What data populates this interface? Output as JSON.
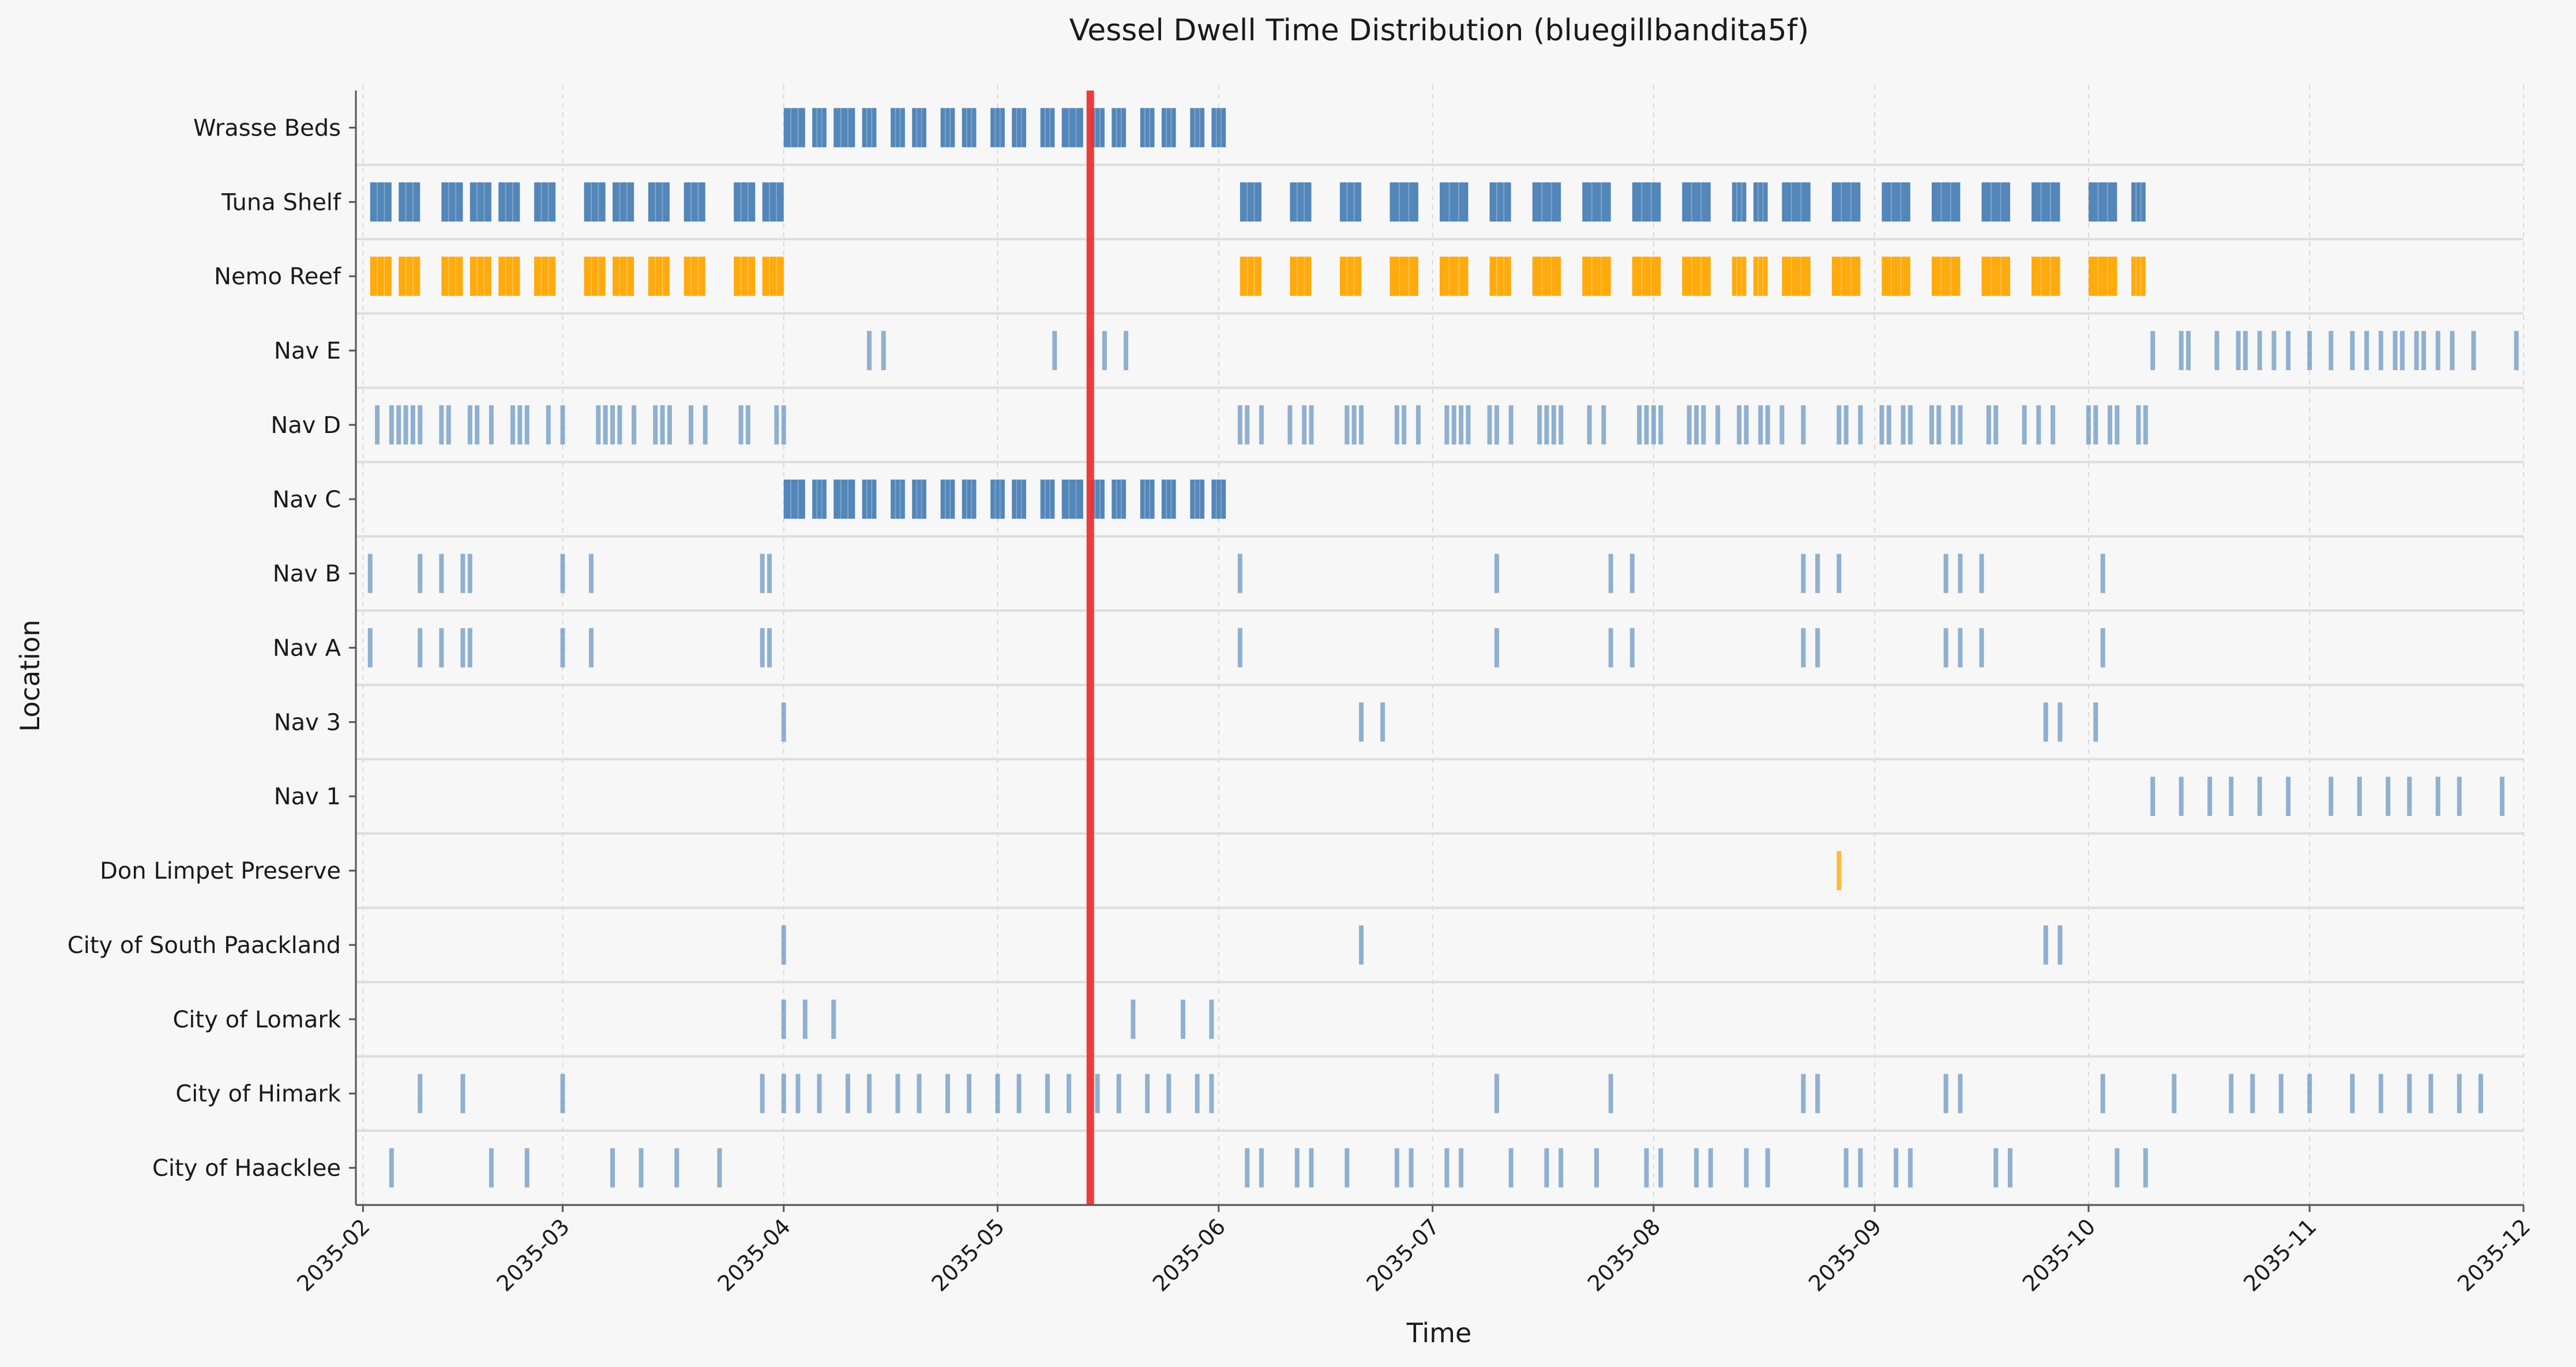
{
  "chart_data": {
    "type": "timeline",
    "title": "Vessel Dwell Time Distribution (bluegillbandita5f)",
    "xlabel": "Time",
    "ylabel": "Location",
    "xlim": [
      "2035-01-31",
      "2035-12-01"
    ],
    "grid": true,
    "x_tick_labels": [
      "2035-02",
      "2035-03",
      "2035-04",
      "2035-05",
      "2035-06",
      "2035-07",
      "2035-08",
      "2035-09",
      "2035-10",
      "2035-11",
      "2035-12"
    ],
    "x_ticks": [
      "2035-02-01",
      "2035-03-01",
      "2035-04-01",
      "2035-05-01",
      "2035-06-01",
      "2035-07-01",
      "2035-08-01",
      "2035-09-01",
      "2035-10-01",
      "2035-11-01",
      "2035-12-01"
    ],
    "categories": [
      "Wrasse Beds",
      "Tuna Shelf",
      "Nemo Reef",
      "Nav E",
      "Nav D",
      "Nav C",
      "Nav B",
      "Nav A",
      "Nav 3",
      "Nav 1",
      "Don Limpet Preserve",
      "City of South Paackland",
      "City of Lomark",
      "City of Himark",
      "City of Haacklee"
    ],
    "marker_line": {
      "x": "2035-05-14",
      "color": "#ee3333"
    },
    "colors": {
      "default": "#4a80b5",
      "highlight": "#ffa500"
    },
    "series": [
      {
        "location": "Wrasse Beds",
        "blocks": [
          [
            "2035-04-01",
            "2035-04-04"
          ],
          [
            "2035-04-05",
            "2035-04-07"
          ],
          [
            "2035-04-08",
            "2035-04-11"
          ],
          [
            "2035-04-12",
            "2035-04-14"
          ],
          [
            "2035-04-16",
            "2035-04-18"
          ],
          [
            "2035-04-19",
            "2035-04-21"
          ],
          [
            "2035-04-23",
            "2035-04-25"
          ],
          [
            "2035-04-26",
            "2035-04-28"
          ],
          [
            "2035-04-30",
            "2035-05-02"
          ],
          [
            "2035-05-03",
            "2035-05-05"
          ],
          [
            "2035-05-07",
            "2035-05-09"
          ],
          [
            "2035-05-10",
            "2035-05-13"
          ],
          [
            "2035-05-14",
            "2035-05-16"
          ],
          [
            "2035-05-17",
            "2035-05-19"
          ],
          [
            "2035-05-21",
            "2035-05-23"
          ],
          [
            "2035-05-24",
            "2035-05-26"
          ],
          [
            "2035-05-28",
            "2035-05-30"
          ],
          [
            "2035-05-31",
            "2035-06-02"
          ]
        ]
      },
      {
        "location": "Tuna Shelf",
        "blocks": [
          [
            "2035-02-02",
            "2035-02-05"
          ],
          [
            "2035-02-06",
            "2035-02-09"
          ],
          [
            "2035-02-12",
            "2035-02-15"
          ],
          [
            "2035-02-16",
            "2035-02-19"
          ],
          [
            "2035-02-20",
            "2035-02-23"
          ],
          [
            "2035-02-25",
            "2035-02-28"
          ],
          [
            "2035-03-04",
            "2035-03-07"
          ],
          [
            "2035-03-08",
            "2035-03-11"
          ],
          [
            "2035-03-13",
            "2035-03-16"
          ],
          [
            "2035-03-18",
            "2035-03-21"
          ],
          [
            "2035-03-25",
            "2035-03-28"
          ],
          [
            "2035-03-29",
            "2035-04-01"
          ],
          [
            "2035-06-04",
            "2035-06-07"
          ],
          [
            "2035-06-11",
            "2035-06-14"
          ],
          [
            "2035-06-18",
            "2035-06-21"
          ],
          [
            "2035-06-25",
            "2035-06-29"
          ],
          [
            "2035-07-02",
            "2035-07-06"
          ],
          [
            "2035-07-09",
            "2035-07-12"
          ],
          [
            "2035-07-15",
            "2035-07-19"
          ],
          [
            "2035-07-22",
            "2035-07-26"
          ],
          [
            "2035-07-29",
            "2035-08-02"
          ],
          [
            "2035-08-05",
            "2035-08-09"
          ],
          [
            "2035-08-12",
            "2035-08-14"
          ],
          [
            "2035-08-15",
            "2035-08-17"
          ],
          [
            "2035-08-19",
            "2035-08-23"
          ],
          [
            "2035-08-26",
            "2035-08-30"
          ],
          [
            "2035-09-02",
            "2035-09-06"
          ],
          [
            "2035-09-09",
            "2035-09-13"
          ],
          [
            "2035-09-16",
            "2035-09-20"
          ],
          [
            "2035-09-23",
            "2035-09-27"
          ],
          [
            "2035-10-01",
            "2035-10-05"
          ],
          [
            "2035-10-07",
            "2035-10-09"
          ]
        ]
      },
      {
        "location": "Nemo Reef",
        "color": "#ffa500",
        "blocks": [
          [
            "2035-02-02",
            "2035-02-05"
          ],
          [
            "2035-02-06",
            "2035-02-09"
          ],
          [
            "2035-02-12",
            "2035-02-15"
          ],
          [
            "2035-02-16",
            "2035-02-19"
          ],
          [
            "2035-02-20",
            "2035-02-23"
          ],
          [
            "2035-02-25",
            "2035-02-28"
          ],
          [
            "2035-03-04",
            "2035-03-07"
          ],
          [
            "2035-03-08",
            "2035-03-11"
          ],
          [
            "2035-03-13",
            "2035-03-16"
          ],
          [
            "2035-03-18",
            "2035-03-21"
          ],
          [
            "2035-03-25",
            "2035-03-28"
          ],
          [
            "2035-03-29",
            "2035-04-01"
          ],
          [
            "2035-06-04",
            "2035-06-07"
          ],
          [
            "2035-06-11",
            "2035-06-14"
          ],
          [
            "2035-06-18",
            "2035-06-21"
          ],
          [
            "2035-06-25",
            "2035-06-29"
          ],
          [
            "2035-07-02",
            "2035-07-06"
          ],
          [
            "2035-07-09",
            "2035-07-12"
          ],
          [
            "2035-07-15",
            "2035-07-19"
          ],
          [
            "2035-07-22",
            "2035-07-26"
          ],
          [
            "2035-07-29",
            "2035-08-02"
          ],
          [
            "2035-08-05",
            "2035-08-09"
          ],
          [
            "2035-08-12",
            "2035-08-14"
          ],
          [
            "2035-08-15",
            "2035-08-17"
          ],
          [
            "2035-08-19",
            "2035-08-23"
          ],
          [
            "2035-08-26",
            "2035-08-30"
          ],
          [
            "2035-09-02",
            "2035-09-06"
          ],
          [
            "2035-09-09",
            "2035-09-13"
          ],
          [
            "2035-09-16",
            "2035-09-20"
          ],
          [
            "2035-09-23",
            "2035-09-27"
          ],
          [
            "2035-10-01",
            "2035-10-05"
          ],
          [
            "2035-10-07",
            "2035-10-09"
          ]
        ]
      },
      {
        "location": "Nav E",
        "events": [
          "2035-04-13",
          "2035-04-15",
          "2035-05-09",
          "2035-05-14",
          "2035-05-16",
          "2035-05-19",
          "2035-10-10",
          "2035-10-14",
          "2035-10-15",
          "2035-10-19",
          "2035-10-22",
          "2035-10-23",
          "2035-10-25",
          "2035-10-27",
          "2035-10-29",
          "2035-11-01",
          "2035-11-04",
          "2035-11-07",
          "2035-11-09",
          "2035-11-11",
          "2035-11-13",
          "2035-11-14",
          "2035-11-16",
          "2035-11-17",
          "2035-11-19",
          "2035-11-21",
          "2035-11-24",
          "2035-11-30"
        ]
      },
      {
        "location": "Nav D",
        "events": [
          "2035-02-03",
          "2035-02-05",
          "2035-02-06",
          "2035-02-07",
          "2035-02-08",
          "2035-02-09",
          "2035-02-12",
          "2035-02-13",
          "2035-02-16",
          "2035-02-17",
          "2035-02-19",
          "2035-02-22",
          "2035-02-23",
          "2035-02-24",
          "2035-02-27",
          "2035-03-01",
          "2035-03-06",
          "2035-03-07",
          "2035-03-08",
          "2035-03-09",
          "2035-03-11",
          "2035-03-14",
          "2035-03-15",
          "2035-03-16",
          "2035-03-19",
          "2035-03-21",
          "2035-03-26",
          "2035-03-27",
          "2035-03-31",
          "2035-04-01",
          "2035-06-04",
          "2035-06-05",
          "2035-06-07",
          "2035-06-11",
          "2035-06-13",
          "2035-06-14",
          "2035-06-19",
          "2035-06-20",
          "2035-06-21",
          "2035-06-26",
          "2035-06-27",
          "2035-06-29",
          "2035-07-03",
          "2035-07-04",
          "2035-07-05",
          "2035-07-06",
          "2035-07-09",
          "2035-07-10",
          "2035-07-12",
          "2035-07-16",
          "2035-07-17",
          "2035-07-18",
          "2035-07-19",
          "2035-07-23",
          "2035-07-25",
          "2035-07-30",
          "2035-07-31",
          "2035-08-01",
          "2035-08-02",
          "2035-08-06",
          "2035-08-07",
          "2035-08-08",
          "2035-08-10",
          "2035-08-13",
          "2035-08-14",
          "2035-08-16",
          "2035-08-17",
          "2035-08-19",
          "2035-08-22",
          "2035-08-27",
          "2035-08-28",
          "2035-08-30",
          "2035-09-02",
          "2035-09-03",
          "2035-09-05",
          "2035-09-06",
          "2035-09-09",
          "2035-09-10",
          "2035-09-12",
          "2035-09-13",
          "2035-09-17",
          "2035-09-18",
          "2035-09-22",
          "2035-09-24",
          "2035-09-26",
          "2035-10-01",
          "2035-10-02",
          "2035-10-04",
          "2035-10-05",
          "2035-10-08",
          "2035-10-09"
        ]
      },
      {
        "location": "Nav C",
        "blocks": [
          [
            "2035-04-01",
            "2035-04-04"
          ],
          [
            "2035-04-05",
            "2035-04-07"
          ],
          [
            "2035-04-08",
            "2035-04-11"
          ],
          [
            "2035-04-12",
            "2035-04-14"
          ],
          [
            "2035-04-16",
            "2035-04-18"
          ],
          [
            "2035-04-19",
            "2035-04-21"
          ],
          [
            "2035-04-23",
            "2035-04-25"
          ],
          [
            "2035-04-26",
            "2035-04-28"
          ],
          [
            "2035-04-30",
            "2035-05-02"
          ],
          [
            "2035-05-03",
            "2035-05-05"
          ],
          [
            "2035-05-07",
            "2035-05-09"
          ],
          [
            "2035-05-10",
            "2035-05-13"
          ],
          [
            "2035-05-14",
            "2035-05-16"
          ],
          [
            "2035-05-17",
            "2035-05-19"
          ],
          [
            "2035-05-21",
            "2035-05-23"
          ],
          [
            "2035-05-24",
            "2035-05-26"
          ],
          [
            "2035-05-28",
            "2035-05-30"
          ],
          [
            "2035-05-31",
            "2035-06-02"
          ]
        ]
      },
      {
        "location": "Nav B",
        "events": [
          "2035-02-02",
          "2035-02-09",
          "2035-02-12",
          "2035-02-15",
          "2035-02-16",
          "2035-03-01",
          "2035-03-05",
          "2035-03-29",
          "2035-03-30",
          "2035-06-04",
          "2035-07-10",
          "2035-07-26",
          "2035-07-29",
          "2035-08-22",
          "2035-08-24",
          "2035-08-27",
          "2035-09-11",
          "2035-09-13",
          "2035-09-16",
          "2035-10-03"
        ]
      },
      {
        "location": "Nav A",
        "events": [
          "2035-02-02",
          "2035-02-09",
          "2035-02-12",
          "2035-02-15",
          "2035-02-16",
          "2035-03-01",
          "2035-03-05",
          "2035-03-29",
          "2035-03-30",
          "2035-06-04",
          "2035-07-10",
          "2035-07-26",
          "2035-07-29",
          "2035-08-22",
          "2035-08-24",
          "2035-09-11",
          "2035-09-13",
          "2035-09-16",
          "2035-10-03"
        ]
      },
      {
        "location": "Nav 3",
        "events": [
          "2035-04-01",
          "2035-06-21",
          "2035-06-24",
          "2035-09-25",
          "2035-09-27",
          "2035-10-02"
        ]
      },
      {
        "location": "Nav 1",
        "events": [
          "2035-10-10",
          "2035-10-14",
          "2035-10-18",
          "2035-10-21",
          "2035-10-25",
          "2035-10-29",
          "2035-11-04",
          "2035-11-08",
          "2035-11-12",
          "2035-11-15",
          "2035-11-19",
          "2035-11-22",
          "2035-11-28"
        ]
      },
      {
        "location": "Don Limpet Preserve",
        "color": "#ffa500",
        "events": [
          "2035-08-27"
        ]
      },
      {
        "location": "City of South Paackland",
        "events": [
          "2035-04-01",
          "2035-06-21",
          "2035-09-25",
          "2035-09-27"
        ]
      },
      {
        "location": "City of Lomark",
        "events": [
          "2035-04-01",
          "2035-04-04",
          "2035-04-08",
          "2035-05-20",
          "2035-05-27",
          "2035-05-31"
        ]
      },
      {
        "location": "City of Himark",
        "events": [
          "2035-02-09",
          "2035-02-15",
          "2035-03-01",
          "2035-03-29",
          "2035-04-01",
          "2035-04-03",
          "2035-04-06",
          "2035-04-10",
          "2035-04-13",
          "2035-04-17",
          "2035-04-20",
          "2035-04-24",
          "2035-04-27",
          "2035-05-01",
          "2035-05-04",
          "2035-05-08",
          "2035-05-11",
          "2035-05-15",
          "2035-05-18",
          "2035-05-22",
          "2035-05-25",
          "2035-05-29",
          "2035-05-31",
          "2035-07-10",
          "2035-07-26",
          "2035-08-22",
          "2035-08-24",
          "2035-09-11",
          "2035-09-13",
          "2035-10-03",
          "2035-10-13",
          "2035-10-21",
          "2035-10-24",
          "2035-10-28",
          "2035-11-01",
          "2035-11-07",
          "2035-11-11",
          "2035-11-15",
          "2035-11-18",
          "2035-11-22",
          "2035-11-25"
        ]
      },
      {
        "location": "City of Haacklee",
        "events": [
          "2035-02-05",
          "2035-02-19",
          "2035-02-24",
          "2035-03-08",
          "2035-03-12",
          "2035-03-17",
          "2035-03-23",
          "2035-06-05",
          "2035-06-07",
          "2035-06-12",
          "2035-06-14",
          "2035-06-19",
          "2035-06-26",
          "2035-06-28",
          "2035-07-03",
          "2035-07-05",
          "2035-07-12",
          "2035-07-17",
          "2035-07-19",
          "2035-07-24",
          "2035-07-31",
          "2035-08-02",
          "2035-08-07",
          "2035-08-09",
          "2035-08-14",
          "2035-08-17",
          "2035-08-28",
          "2035-08-30",
          "2035-09-04",
          "2035-09-06",
          "2035-09-18",
          "2035-09-20",
          "2035-10-05",
          "2035-10-09"
        ]
      }
    ]
  }
}
